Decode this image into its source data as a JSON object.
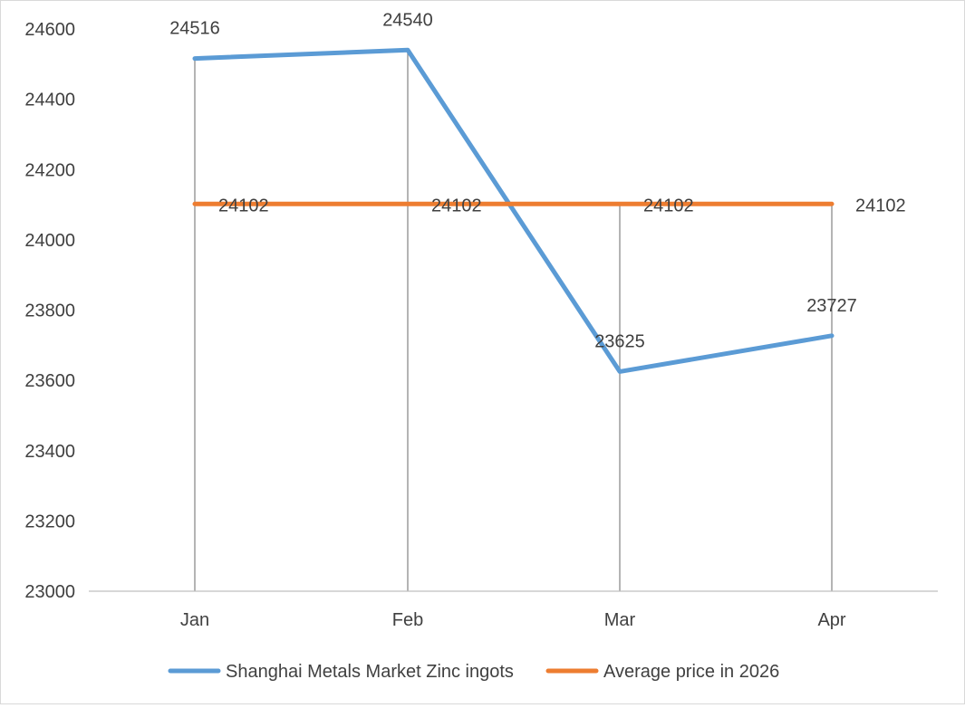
{
  "chart_data": {
    "type": "line",
    "title": "",
    "xlabel": "",
    "ylabel": "",
    "categories": [
      "Jan",
      "Feb",
      "Mar",
      "Apr"
    ],
    "ylim": [
      23000,
      24600
    ],
    "yticks": [
      23000,
      23200,
      23400,
      23600,
      23800,
      24000,
      24200,
      24400,
      24600
    ],
    "grid": "vertical drop lines at each category",
    "legend_position": "bottom",
    "series": [
      {
        "name": "Shanghai Metals Market Zinc ingots",
        "values": [
          24516,
          24540,
          23625,
          23727
        ],
        "color": "#5b9bd5"
      },
      {
        "name": "Average price in 2026",
        "values": [
          24102,
          24102,
          24102,
          24102
        ],
        "color": "#ed7d31"
      }
    ]
  }
}
